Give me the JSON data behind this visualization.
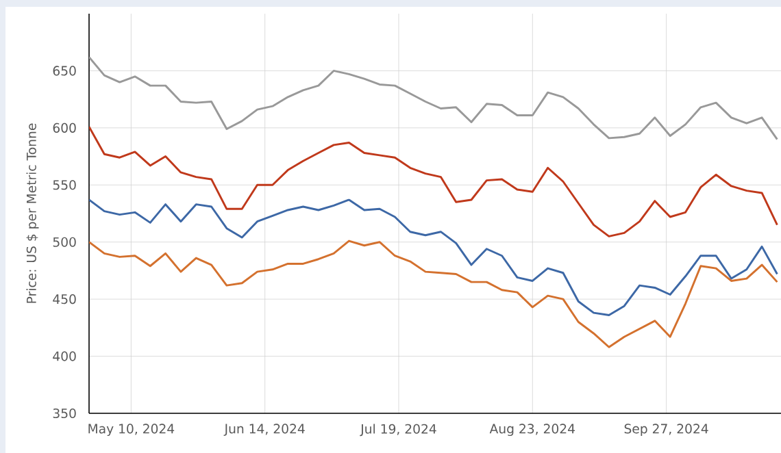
{
  "chart_data": {
    "type": "line",
    "ylabel": "Price: US $ per Metric Tonne",
    "x": [
      "2024-04-29",
      "2024-05-03",
      "2024-05-07",
      "2024-05-11",
      "2024-05-15",
      "2024-05-19",
      "2024-05-23",
      "2024-05-27",
      "2024-05-31",
      "2024-06-04",
      "2024-06-08",
      "2024-06-12",
      "2024-06-16",
      "2024-06-20",
      "2024-06-24",
      "2024-06-28",
      "2024-07-02",
      "2024-07-06",
      "2024-07-10",
      "2024-07-14",
      "2024-07-18",
      "2024-07-22",
      "2024-07-26",
      "2024-07-30",
      "2024-08-03",
      "2024-08-07",
      "2024-08-11",
      "2024-08-15",
      "2024-08-19",
      "2024-08-23",
      "2024-08-27",
      "2024-08-31",
      "2024-09-04",
      "2024-09-08",
      "2024-09-12",
      "2024-09-16",
      "2024-09-20",
      "2024-09-24",
      "2024-09-28",
      "2024-10-02",
      "2024-10-06",
      "2024-10-10",
      "2024-10-14",
      "2024-10-18",
      "2024-10-22",
      "2024-10-26"
    ],
    "series": [
      {
        "color": "#999999",
        "values": [
          662,
          646,
          640,
          645,
          637,
          637,
          623,
          622,
          623,
          599,
          606,
          616,
          619,
          627,
          633,
          637,
          650,
          647,
          643,
          638,
          637,
          630,
          623,
          617,
          618,
          605,
          621,
          620,
          611,
          611,
          631,
          627,
          617,
          603,
          591,
          592,
          595,
          609,
          593,
          603,
          618,
          622,
          609,
          604,
          609,
          590
        ]
      },
      {
        "color": "#c0391b",
        "values": [
          601,
          577,
          574,
          579,
          567,
          575,
          561,
          557,
          555,
          529,
          529,
          550,
          550,
          563,
          571,
          578,
          585,
          587,
          578,
          576,
          574,
          565,
          560,
          557,
          535,
          537,
          554,
          555,
          546,
          544,
          565,
          553,
          534,
          515,
          505,
          508,
          518,
          536,
          522,
          526,
          548,
          559,
          549,
          545,
          543,
          515
        ]
      },
      {
        "color": "#3d68a6",
        "values": [
          537,
          527,
          524,
          526,
          517,
          533,
          518,
          533,
          531,
          512,
          504,
          518,
          523,
          528,
          531,
          528,
          532,
          537,
          528,
          529,
          522,
          509,
          506,
          509,
          499,
          480,
          494,
          488,
          469,
          466,
          477,
          473,
          448,
          438,
          436,
          444,
          462,
          460,
          454,
          470,
          488,
          488,
          468,
          476,
          496,
          472
        ]
      },
      {
        "color": "#d4712e",
        "values": [
          500,
          490,
          487,
          488,
          479,
          490,
          474,
          486,
          480,
          462,
          464,
          474,
          476,
          481,
          481,
          485,
          490,
          501,
          497,
          500,
          488,
          483,
          474,
          473,
          472,
          465,
          465,
          458,
          456,
          443,
          453,
          450,
          430,
          420,
          408,
          417,
          424,
          431,
          417,
          446,
          479,
          477,
          466,
          468,
          480,
          465
        ]
      }
    ],
    "xlim": [
      "2024-04-29",
      "2024-10-27"
    ],
    "xticks": [
      {
        "value": "2024-05-10",
        "label": "May 10, 2024"
      },
      {
        "value": "2024-06-14",
        "label": "Jun 14, 2024"
      },
      {
        "value": "2024-07-19",
        "label": "Jul 19, 2024"
      },
      {
        "value": "2024-08-23",
        "label": "Aug 23, 2024"
      },
      {
        "value": "2024-09-27",
        "label": "Sep 27, 2024"
      }
    ],
    "ylim": [
      350,
      700
    ],
    "yticks": [
      350,
      400,
      450,
      500,
      550,
      600,
      650
    ],
    "grid": true
  }
}
